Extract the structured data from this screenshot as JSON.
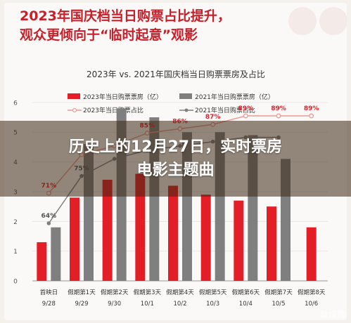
{
  "headline": {
    "line1": "2023年国庆档当日购票占比提升，",
    "line2": "观众更倾向于“临时起意”观影"
  },
  "overlay": {
    "line1": "历史上的12月27日，实时票房",
    "line2": "电影主题曲"
  },
  "watermark": "鈦媒體",
  "colors": {
    "bar2023": "#e41e26",
    "bar2021": "#7f7f7f",
    "line2023": "#f09a92",
    "line2021": "#7f7f7f",
    "headline": "#c8202a"
  },
  "chart_data": {
    "type": "bar",
    "title": "2023年 vs. 2021年国庆档当日购票票房及占比",
    "categories": [
      "首映日\n9/28",
      "假期第1天\n9/29",
      "假期第2天\n9/30",
      "假期第3天\n10/1",
      "假期第4天\n10/2",
      "假期第5天\n10/3",
      "假期第6天\n10/4",
      "假期第7天\n10/5",
      "假期第8天\n10/6"
    ],
    "series": [
      {
        "name": "2023年当日购票票房（亿）",
        "kind": "bar",
        "values": [
          1.3,
          2.8,
          3.4,
          3.6,
          3.2,
          2.9,
          2.7,
          2.5,
          1.8
        ]
      },
      {
        "name": "2021年当日购票票房（亿）",
        "kind": "bar",
        "values": [
          1.8,
          4.6,
          5.8,
          5.5,
          5.0,
          5.0,
          4.9,
          4.1,
          null
        ]
      },
      {
        "name": "2023年当日购票占比",
        "kind": "line",
        "values": [
          71,
          80,
          82,
          85,
          86,
          87,
          89,
          89,
          89
        ],
        "labels": [
          "71%",
          "",
          "",
          "85%",
          "86%",
          "87%",
          "89%",
          "89%",
          "89%"
        ]
      },
      {
        "name": "2021年当日购票占比",
        "kind": "line",
        "values": [
          64,
          75,
          79,
          81,
          82,
          83,
          84,
          84,
          null
        ],
        "labels": [
          "64%",
          "75%",
          "",
          "",
          "",
          "",
          "",
          "",
          ""
        ]
      }
    ],
    "yticks": [
      0,
      1,
      2,
      3,
      4,
      5,
      6
    ],
    "ylim": [
      0,
      6.8
    ],
    "pct_range": [
      40,
      95
    ],
    "legend_position": "top"
  }
}
